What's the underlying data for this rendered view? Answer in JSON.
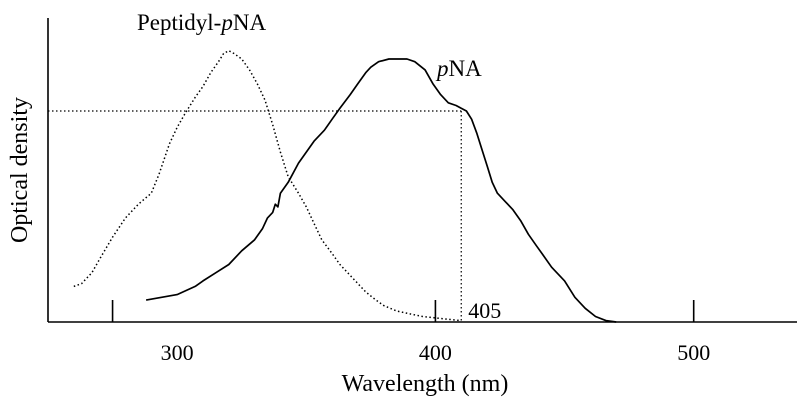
{
  "chart_data": {
    "type": "line",
    "xlabel": "Wavelength (nm)",
    "ylabel": "Optical density",
    "xlim": [
      250,
      540
    ],
    "ylim": [
      0,
      1.0
    ],
    "x_ticks": [
      300,
      400,
      500
    ],
    "x_tick_labels": [
      "300",
      "400",
      "500"
    ],
    "x_ticks_unlabeled": [
      275,
      400,
      500
    ],
    "y_ticks": [],
    "grid": false,
    "legend": "none",
    "series": [
      {
        "name": "Peptidyl-pNA",
        "name_parts": [
          "Peptidyl-",
          "p",
          "NA"
        ],
        "line_style": "dotted",
        "color": "#000000",
        "points": [
          [
            260,
            0.13
          ],
          [
            263,
            0.14
          ],
          [
            267,
            0.18
          ],
          [
            270,
            0.23
          ],
          [
            275,
            0.31
          ],
          [
            280,
            0.38
          ],
          [
            285,
            0.43
          ],
          [
            290,
            0.47
          ],
          [
            293,
            0.54
          ],
          [
            297,
            0.65
          ],
          [
            300,
            0.71
          ],
          [
            303,
            0.76
          ],
          [
            307,
            0.82
          ],
          [
            310,
            0.86
          ],
          [
            313,
            0.91
          ],
          [
            316,
            0.95
          ],
          [
            318,
            0.98
          ],
          [
            320,
            0.99
          ],
          [
            322,
            0.98
          ],
          [
            325,
            0.96
          ],
          [
            328,
            0.92
          ],
          [
            331,
            0.87
          ],
          [
            334,
            0.81
          ],
          [
            337,
            0.72
          ],
          [
            340,
            0.62
          ],
          [
            343,
            0.53
          ],
          [
            347,
            0.47
          ],
          [
            350,
            0.42
          ],
          [
            353,
            0.36
          ],
          [
            356,
            0.3
          ],
          [
            360,
            0.25
          ],
          [
            363,
            0.21
          ],
          [
            367,
            0.17
          ],
          [
            370,
            0.14
          ],
          [
            373,
            0.11
          ],
          [
            377,
            0.08
          ],
          [
            380,
            0.06
          ],
          [
            385,
            0.04
          ],
          [
            390,
            0.03
          ],
          [
            395,
            0.02
          ],
          [
            400,
            0.015
          ],
          [
            405,
            0.01
          ],
          [
            410,
            0.005
          ]
        ]
      },
      {
        "name": "pNA",
        "name_parts": [
          "",
          "p",
          "NA"
        ],
        "line_style": "solid",
        "color": "#000000",
        "points": [
          [
            288,
            0.08
          ],
          [
            300,
            0.1
          ],
          [
            307,
            0.13
          ],
          [
            310,
            0.15
          ],
          [
            315,
            0.18
          ],
          [
            320,
            0.21
          ],
          [
            325,
            0.26
          ],
          [
            330,
            0.3
          ],
          [
            333,
            0.34
          ],
          [
            335,
            0.38
          ],
          [
            337,
            0.4
          ],
          [
            338,
            0.43
          ],
          [
            339,
            0.42
          ],
          [
            340,
            0.47
          ],
          [
            343,
            0.51
          ],
          [
            347,
            0.58
          ],
          [
            350,
            0.62
          ],
          [
            353,
            0.66
          ],
          [
            357,
            0.7
          ],
          [
            360,
            0.74
          ],
          [
            363,
            0.78
          ],
          [
            367,
            0.83
          ],
          [
            370,
            0.87
          ],
          [
            373,
            0.91
          ],
          [
            375,
            0.93
          ],
          [
            378,
            0.95
          ],
          [
            382,
            0.96
          ],
          [
            385,
            0.96
          ],
          [
            389,
            0.96
          ],
          [
            392,
            0.95
          ],
          [
            396,
            0.92
          ],
          [
            399,
            0.87
          ],
          [
            402,
            0.83
          ],
          [
            405,
            0.8
          ],
          [
            408,
            0.79
          ],
          [
            410,
            0.78
          ],
          [
            412,
            0.77
          ],
          [
            414,
            0.74
          ],
          [
            416,
            0.69
          ],
          [
            418,
            0.63
          ],
          [
            420,
            0.57
          ],
          [
            422,
            0.51
          ],
          [
            424,
            0.47
          ],
          [
            427,
            0.44
          ],
          [
            430,
            0.41
          ],
          [
            433,
            0.37
          ],
          [
            436,
            0.32
          ],
          [
            439,
            0.28
          ],
          [
            442,
            0.24
          ],
          [
            445,
            0.2
          ],
          [
            447,
            0.18
          ],
          [
            450,
            0.15
          ],
          [
            454,
            0.09
          ],
          [
            458,
            0.05
          ],
          [
            462,
            0.02
          ],
          [
            466,
            0.005
          ],
          [
            470,
            0.0
          ]
        ]
      }
    ],
    "annotations": [
      {
        "label": "405",
        "x": 410,
        "y": 0.77,
        "style": "dotted reference lines to both axes"
      }
    ]
  }
}
